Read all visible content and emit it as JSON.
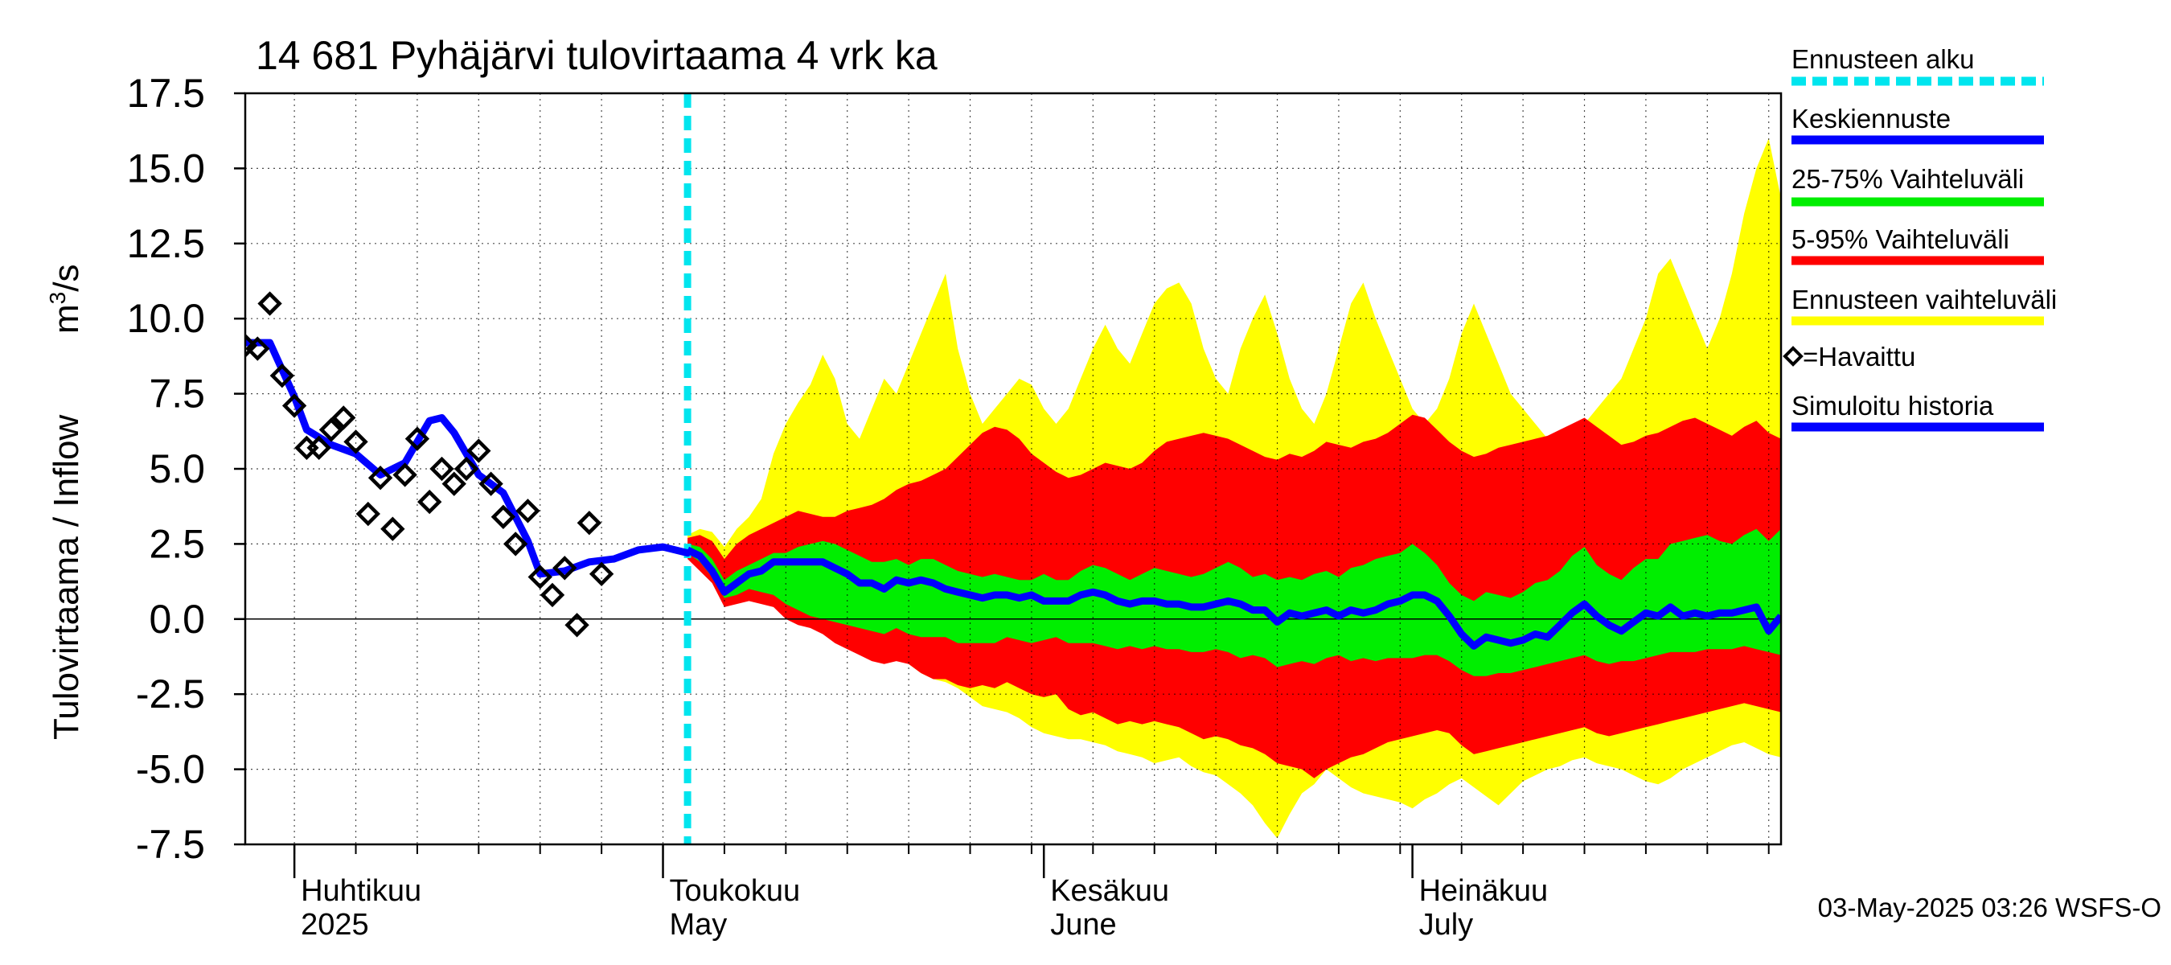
{
  "chart_data": {
    "type": "area",
    "title": "14 681 Pyhäjärvi tulovirtaama 4 vrk ka",
    "ylabel": "Tulovirtaama / Inflow",
    "yunit_base": "m",
    "yunit_sup": "3",
    "yunit_tail": "/s",
    "ylim": [
      -7.5,
      17.5
    ],
    "yticks": [
      "17.5",
      "15.0",
      "12.5",
      "10.0",
      "7.5",
      "5.0",
      "2.5",
      "0.0",
      "-2.5",
      "-5.0",
      "-7.5"
    ],
    "ytick_values": [
      17.5,
      15,
      12.5,
      10,
      7.5,
      5,
      2.5,
      0,
      -2.5,
      -5,
      -7.5
    ],
    "xlim": [
      "2025-03-28",
      "2025-07-31"
    ],
    "x_month_labels": [
      {
        "line1": "Huhtikuu",
        "line2": "2025",
        "date": "2025-04-01"
      },
      {
        "line1": "Toukokuu",
        "line2": "May",
        "date": "2025-05-01"
      },
      {
        "line1": "Kesäkuu",
        "line2": "June",
        "date": "2025-06-01"
      },
      {
        "line1": "Heinäkuu",
        "line2": "July",
        "date": "2025-07-01"
      }
    ],
    "forecast_start": "2025-05-03",
    "grid": true,
    "footer": "03-May-2025 03:26 WSFS-O",
    "legend": {
      "placement": "right",
      "entries": [
        {
          "label": "Ennusteen alku",
          "color": "#00e5ee",
          "style": "dashed"
        },
        {
          "label": "Keskiennuste",
          "color": "#0000ff",
          "style": "line"
        },
        {
          "label": "25-75% Vaihteluväli",
          "color": "#00ee00",
          "style": "band"
        },
        {
          "label": "5-95% Vaihteluväli",
          "color": "#ff0000",
          "style": "band"
        },
        {
          "label": "Ennusteen vaihteluväli",
          "color": "#ffff00",
          "style": "band"
        },
        {
          "label": "=Havaittu",
          "color": "#000000",
          "style": "marker"
        },
        {
          "label": "Simuloitu historia",
          "color": "#0000ff",
          "style": "line"
        }
      ]
    },
    "observed": [
      {
        "x": "2025-03-28",
        "y": 9.1
      },
      {
        "x": "2025-03-29",
        "y": 9.0
      },
      {
        "x": "2025-03-30",
        "y": 10.5
      },
      {
        "x": "2025-03-31",
        "y": 8.1
      },
      {
        "x": "2025-04-01",
        "y": 7.1
      },
      {
        "x": "2025-04-02",
        "y": 5.7
      },
      {
        "x": "2025-04-03",
        "y": 5.7
      },
      {
        "x": "2025-04-04",
        "y": 6.3
      },
      {
        "x": "2025-04-05",
        "y": 6.7
      },
      {
        "x": "2025-04-06",
        "y": 5.9
      },
      {
        "x": "2025-04-07",
        "y": 3.5
      },
      {
        "x": "2025-04-08",
        "y": 4.7
      },
      {
        "x": "2025-04-09",
        "y": 3.0
      },
      {
        "x": "2025-04-10",
        "y": 4.8
      },
      {
        "x": "2025-04-11",
        "y": 6.0
      },
      {
        "x": "2025-04-12",
        "y": 3.9
      },
      {
        "x": "2025-04-13",
        "y": 5.0
      },
      {
        "x": "2025-04-14",
        "y": 4.5
      },
      {
        "x": "2025-04-15",
        "y": 5.0
      },
      {
        "x": "2025-04-16",
        "y": 5.6
      },
      {
        "x": "2025-04-17",
        "y": 4.5
      },
      {
        "x": "2025-04-18",
        "y": 3.4
      },
      {
        "x": "2025-04-19",
        "y": 2.5
      },
      {
        "x": "2025-04-20",
        "y": 3.6
      },
      {
        "x": "2025-04-21",
        "y": 1.4
      },
      {
        "x": "2025-04-22",
        "y": 0.8
      },
      {
        "x": "2025-04-23",
        "y": 1.7
      },
      {
        "x": "2025-04-24",
        "y": -0.2
      },
      {
        "x": "2025-04-25",
        "y": 3.2
      },
      {
        "x": "2025-04-26",
        "y": 1.5
      }
    ],
    "simulated_history": [
      {
        "x": "2025-03-28",
        "y": 9.2
      },
      {
        "x": "2025-03-30",
        "y": 9.2
      },
      {
        "x": "2025-04-01",
        "y": 7.4
      },
      {
        "x": "2025-04-02",
        "y": 6.3
      },
      {
        "x": "2025-04-04",
        "y": 5.8
      },
      {
        "x": "2025-04-06",
        "y": 5.5
      },
      {
        "x": "2025-04-08",
        "y": 4.8
      },
      {
        "x": "2025-04-10",
        "y": 5.2
      },
      {
        "x": "2025-04-12",
        "y": 6.6
      },
      {
        "x": "2025-04-13",
        "y": 6.7
      },
      {
        "x": "2025-04-14",
        "y": 6.2
      },
      {
        "x": "2025-04-16",
        "y": 4.8
      },
      {
        "x": "2025-04-18",
        "y": 4.2
      },
      {
        "x": "2025-04-20",
        "y": 2.6
      },
      {
        "x": "2025-04-21",
        "y": 1.5
      },
      {
        "x": "2025-04-23",
        "y": 1.6
      },
      {
        "x": "2025-04-25",
        "y": 1.9
      },
      {
        "x": "2025-04-27",
        "y": 2.0
      },
      {
        "x": "2025-04-29",
        "y": 2.3
      },
      {
        "x": "2025-05-01",
        "y": 2.4
      },
      {
        "x": "2025-05-03",
        "y": 2.2
      }
    ],
    "forecast": {
      "x": [
        "2025-05-03",
        "2025-05-04",
        "2025-05-05",
        "2025-05-06",
        "2025-05-07",
        "2025-05-08",
        "2025-05-09",
        "2025-05-10",
        "2025-05-11",
        "2025-05-12",
        "2025-05-13",
        "2025-05-14",
        "2025-05-15",
        "2025-05-16",
        "2025-05-17",
        "2025-05-18",
        "2025-05-19",
        "2025-05-20",
        "2025-05-21",
        "2025-05-22",
        "2025-05-23",
        "2025-05-24",
        "2025-05-25",
        "2025-05-26",
        "2025-05-27",
        "2025-05-28",
        "2025-05-29",
        "2025-05-30",
        "2025-05-31",
        "2025-06-01",
        "2025-06-02",
        "2025-06-03",
        "2025-06-04",
        "2025-06-05",
        "2025-06-06",
        "2025-06-07",
        "2025-06-08",
        "2025-06-09",
        "2025-06-10",
        "2025-06-11",
        "2025-06-12",
        "2025-06-13",
        "2025-06-14",
        "2025-06-15",
        "2025-06-16",
        "2025-06-17",
        "2025-06-18",
        "2025-06-19",
        "2025-06-20",
        "2025-06-21",
        "2025-06-22",
        "2025-06-23",
        "2025-06-24",
        "2025-06-25",
        "2025-06-26",
        "2025-06-27",
        "2025-06-28",
        "2025-06-29",
        "2025-06-30",
        "2025-07-01",
        "2025-07-02",
        "2025-07-03",
        "2025-07-04",
        "2025-07-05",
        "2025-07-06",
        "2025-07-07",
        "2025-07-08",
        "2025-07-09",
        "2025-07-10",
        "2025-07-11",
        "2025-07-12",
        "2025-07-13",
        "2025-07-14",
        "2025-07-15",
        "2025-07-16",
        "2025-07-17",
        "2025-07-18",
        "2025-07-19",
        "2025-07-20",
        "2025-07-21",
        "2025-07-22",
        "2025-07-23",
        "2025-07-24",
        "2025-07-25",
        "2025-07-26",
        "2025-07-27",
        "2025-07-28",
        "2025-07-29",
        "2025-07-30",
        "2025-07-31"
      ],
      "median": [
        2.3,
        2.1,
        1.6,
        0.9,
        1.2,
        1.5,
        1.6,
        1.9,
        1.9,
        1.9,
        1.9,
        1.9,
        1.7,
        1.5,
        1.2,
        1.2,
        1.0,
        1.3,
        1.2,
        1.3,
        1.2,
        1.0,
        0.9,
        0.8,
        0.7,
        0.8,
        0.8,
        0.7,
        0.8,
        0.6,
        0.6,
        0.6,
        0.8,
        0.9,
        0.8,
        0.6,
        0.5,
        0.6,
        0.6,
        0.5,
        0.5,
        0.4,
        0.4,
        0.5,
        0.6,
        0.5,
        0.3,
        0.3,
        -0.1,
        0.2,
        0.1,
        0.2,
        0.3,
        0.1,
        0.3,
        0.2,
        0.3,
        0.5,
        0.6,
        0.8,
        0.8,
        0.6,
        0.1,
        -0.5,
        -0.9,
        -0.6,
        -0.7,
        -0.8,
        -0.7,
        -0.5,
        -0.6,
        -0.2,
        0.2,
        0.5,
        0.1,
        -0.2,
        -0.4,
        -0.1,
        0.2,
        0.1,
        0.4,
        0.1,
        0.2,
        0.1,
        0.2,
        0.2,
        0.3,
        0.4,
        -0.4,
        0.1
      ],
      "p25": [
        2.2,
        1.9,
        1.4,
        0.7,
        0.8,
        1.0,
        0.9,
        0.8,
        0.5,
        0.3,
        0.1,
        0.0,
        -0.1,
        -0.2,
        -0.3,
        -0.4,
        -0.5,
        -0.3,
        -0.5,
        -0.6,
        -0.6,
        -0.6,
        -0.8,
        -0.8,
        -0.8,
        -0.8,
        -0.6,
        -0.7,
        -0.8,
        -0.7,
        -0.6,
        -0.8,
        -0.8,
        -0.8,
        -0.9,
        -1.0,
        -0.9,
        -1.0,
        -0.9,
        -1.0,
        -1.0,
        -1.1,
        -1.1,
        -1.0,
        -1.1,
        -1.3,
        -1.2,
        -1.3,
        -1.6,
        -1.5,
        -1.4,
        -1.5,
        -1.3,
        -1.2,
        -1.4,
        -1.3,
        -1.4,
        -1.3,
        -1.3,
        -1.3,
        -1.2,
        -1.2,
        -1.4,
        -1.7,
        -1.9,
        -1.9,
        -1.8,
        -1.8,
        -1.7,
        -1.6,
        -1.5,
        -1.4,
        -1.3,
        -1.2,
        -1.4,
        -1.5,
        -1.4,
        -1.4,
        -1.3,
        -1.2,
        -1.1,
        -1.1,
        -1.1,
        -1.0,
        -1.0,
        -1.0,
        -0.9,
        -1.0,
        -1.1,
        -1.2
      ],
      "p75": [
        2.5,
        2.4,
        2.0,
        1.3,
        1.6,
        1.8,
        2.0,
        2.2,
        2.2,
        2.4,
        2.5,
        2.6,
        2.5,
        2.3,
        2.1,
        1.9,
        1.9,
        2.0,
        1.8,
        2.0,
        2.0,
        1.8,
        1.6,
        1.5,
        1.4,
        1.5,
        1.4,
        1.3,
        1.3,
        1.5,
        1.3,
        1.3,
        1.6,
        1.8,
        1.7,
        1.5,
        1.3,
        1.5,
        1.7,
        1.6,
        1.5,
        1.4,
        1.5,
        1.7,
        1.9,
        1.7,
        1.4,
        1.5,
        1.3,
        1.4,
        1.3,
        1.5,
        1.6,
        1.4,
        1.7,
        1.8,
        2.0,
        2.1,
        2.2,
        2.5,
        2.2,
        1.8,
        1.2,
        0.8,
        0.6,
        0.9,
        0.8,
        0.7,
        0.9,
        1.2,
        1.3,
        1.6,
        2.1,
        2.4,
        1.8,
        1.5,
        1.3,
        1.7,
        2.0,
        2.0,
        2.5,
        2.6,
        2.7,
        2.8,
        2.6,
        2.5,
        2.8,
        3.0,
        2.6,
        3.0
      ],
      "p05": [
        2.0,
        1.6,
        1.2,
        0.4,
        0.5,
        0.6,
        0.5,
        0.4,
        0.0,
        -0.2,
        -0.3,
        -0.5,
        -0.8,
        -1.0,
        -1.2,
        -1.4,
        -1.5,
        -1.4,
        -1.5,
        -1.8,
        -2.0,
        -2.0,
        -2.2,
        -2.3,
        -2.2,
        -2.3,
        -2.1,
        -2.3,
        -2.5,
        -2.6,
        -2.5,
        -3.0,
        -3.2,
        -3.1,
        -3.3,
        -3.5,
        -3.4,
        -3.5,
        -3.4,
        -3.5,
        -3.6,
        -3.8,
        -4.0,
        -3.9,
        -4.0,
        -4.2,
        -4.3,
        -4.5,
        -4.8,
        -4.9,
        -5.0,
        -5.3,
        -5.0,
        -4.8,
        -4.6,
        -4.5,
        -4.3,
        -4.1,
        -4.0,
        -3.9,
        -3.8,
        -3.7,
        -3.8,
        -4.2,
        -4.5,
        -4.4,
        -4.3,
        -4.2,
        -4.1,
        -4.0,
        -3.9,
        -3.8,
        -3.7,
        -3.6,
        -3.8,
        -3.9,
        -3.8,
        -3.7,
        -3.6,
        -3.5,
        -3.4,
        -3.3,
        -3.2,
        -3.1,
        -3.0,
        -2.9,
        -2.8,
        -2.9,
        -3.0,
        -3.1
      ],
      "p95": [
        2.7,
        2.8,
        2.6,
        2.0,
        2.5,
        2.8,
        3.0,
        3.2,
        3.4,
        3.6,
        3.5,
        3.4,
        3.4,
        3.6,
        3.7,
        3.8,
        4.0,
        4.3,
        4.5,
        4.6,
        4.8,
        5.0,
        5.4,
        5.8,
        6.2,
        6.4,
        6.3,
        6.0,
        5.5,
        5.2,
        4.9,
        4.7,
        4.8,
        5.0,
        5.2,
        5.1,
        5.0,
        5.2,
        5.6,
        5.9,
        6.0,
        6.1,
        6.2,
        6.1,
        6.0,
        5.8,
        5.6,
        5.4,
        5.3,
        5.5,
        5.4,
        5.6,
        5.9,
        5.8,
        5.7,
        5.9,
        6.0,
        6.2,
        6.5,
        6.8,
        6.7,
        6.3,
        5.9,
        5.6,
        5.4,
        5.5,
        5.7,
        5.8,
        5.9,
        6.0,
        6.1,
        6.3,
        6.5,
        6.7,
        6.4,
        6.1,
        5.8,
        5.9,
        6.1,
        6.2,
        6.4,
        6.6,
        6.7,
        6.5,
        6.3,
        6.1,
        6.4,
        6.6,
        6.2,
        6.0
      ],
      "min": [
        2.5,
        2.2,
        1.8,
        1.0,
        1.1,
        1.0,
        0.8,
        0.6,
        0.3,
        0.1,
        -0.1,
        -0.4,
        -0.6,
        -0.9,
        -1.0,
        -1.2,
        -1.3,
        -1.2,
        -1.5,
        -1.8,
        -2.0,
        -2.1,
        -2.3,
        -2.6,
        -2.9,
        -3.0,
        -3.1,
        -3.3,
        -3.6,
        -3.8,
        -3.9,
        -4.0,
        -4.0,
        -4.1,
        -4.2,
        -4.4,
        -4.5,
        -4.6,
        -4.8,
        -4.7,
        -4.6,
        -4.9,
        -5.1,
        -5.2,
        -5.5,
        -5.8,
        -6.2,
        -6.8,
        -7.3,
        -6.5,
        -5.8,
        -5.5,
        -5.0,
        -5.3,
        -5.6,
        -5.8,
        -5.9,
        -6.0,
        -6.1,
        -6.3,
        -6.0,
        -5.8,
        -5.5,
        -5.3,
        -5.6,
        -5.9,
        -6.2,
        -5.8,
        -5.4,
        -5.2,
        -5.0,
        -4.9,
        -4.7,
        -4.6,
        -4.8,
        -4.9,
        -5.0,
        -5.2,
        -5.4,
        -5.5,
        -5.3,
        -5.0,
        -4.8,
        -4.6,
        -4.4,
        -4.2,
        -4.1,
        -4.3,
        -4.5,
        -4.6
      ],
      "max": [
        2.8,
        3.0,
        2.9,
        2.4,
        3.0,
        3.4,
        4.0,
        5.5,
        6.5,
        7.2,
        7.8,
        8.8,
        8.0,
        6.5,
        6.0,
        7.0,
        8.0,
        7.5,
        8.5,
        9.5,
        10.5,
        11.5,
        9.0,
        7.5,
        6.5,
        7.0,
        7.5,
        8.0,
        7.8,
        7.0,
        6.5,
        7.0,
        8.0,
        9.0,
        9.8,
        9.0,
        8.5,
        9.5,
        10.5,
        11.0,
        11.2,
        10.5,
        9.0,
        8.0,
        7.5,
        9.0,
        10.0,
        10.8,
        9.5,
        8.0,
        7.0,
        6.5,
        7.5,
        9.0,
        10.5,
        11.2,
        10.0,
        9.0,
        8.0,
        7.0,
        6.5,
        7.0,
        8.0,
        9.5,
        10.5,
        9.5,
        8.5,
        7.5,
        7.0,
        6.5,
        6.0,
        5.8,
        6.0,
        6.5,
        7.0,
        7.5,
        8.0,
        9.0,
        10.0,
        11.5,
        12.0,
        11.0,
        10.0,
        9.0,
        10.0,
        11.5,
        13.5,
        15.0,
        16.0,
        14.0
      ]
    }
  }
}
